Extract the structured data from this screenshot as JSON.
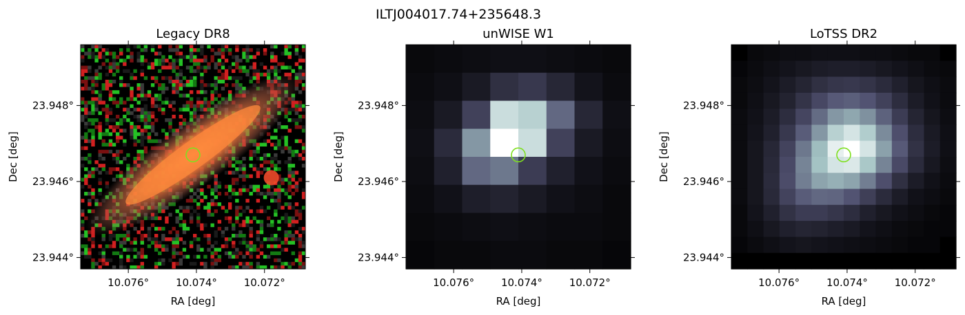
{
  "figure": {
    "title": "ILTJ004017.74+235648.3"
  },
  "chart_data": [
    {
      "type": "heatmap",
      "title": "Legacy DR8",
      "xlabel": "RA [deg]",
      "ylabel": "Dec [deg]",
      "x_ticks": [
        10.076,
        10.074,
        10.072
      ],
      "x_tick_labels": [
        "10.076°",
        "10.074°",
        "10.072°"
      ],
      "y_ticks": [
        23.948,
        23.946,
        23.944
      ],
      "y_tick_labels": [
        "23.948°",
        "23.946°",
        "23.944°"
      ],
      "xlim": [
        10.0774,
        10.0708
      ],
      "ylim": [
        23.9437,
        23.9496
      ],
      "x_inverted": true,
      "marker": {
        "shape": "circle",
        "ra": 10.0741,
        "dec": 23.9467,
        "color": "#7fe01f"
      },
      "image": "optical RGB color composite: elongated orange edge-on galaxy along diagonal, small red source lower-right, noisy red/green background"
    },
    {
      "type": "heatmap",
      "title": "unWISE W1",
      "xlabel": "RA [deg]",
      "ylabel": "Dec [deg]",
      "x_ticks": [
        10.076,
        10.074,
        10.072
      ],
      "x_tick_labels": [
        "10.076°",
        "10.074°",
        "10.072°"
      ],
      "y_ticks": [
        23.948,
        23.946,
        23.944
      ],
      "y_tick_labels": [
        "23.948°",
        "23.946°",
        "23.944°"
      ],
      "xlim": [
        10.0774,
        10.0708
      ],
      "ylim": [
        23.9437,
        23.9496
      ],
      "x_inverted": true,
      "marker": {
        "shape": "circle",
        "ra": 10.0741,
        "dec": 23.9467,
        "color": "#7fe01f"
      },
      "colormap": "bone",
      "grid_shape": [
        8,
        8
      ],
      "values": [
        [
          0.04,
          0.05,
          0.06,
          0.07,
          0.07,
          0.06,
          0.05,
          0.04
        ],
        [
          0.05,
          0.07,
          0.12,
          0.22,
          0.26,
          0.18,
          0.09,
          0.05
        ],
        [
          0.06,
          0.12,
          0.3,
          0.85,
          0.8,
          0.45,
          0.18,
          0.07
        ],
        [
          0.07,
          0.2,
          0.6,
          1.0,
          0.85,
          0.3,
          0.12,
          0.06
        ],
        [
          0.06,
          0.15,
          0.45,
          0.5,
          0.28,
          0.15,
          0.08,
          0.05
        ],
        [
          0.05,
          0.08,
          0.14,
          0.16,
          0.12,
          0.08,
          0.06,
          0.04
        ],
        [
          0.04,
          0.05,
          0.06,
          0.07,
          0.06,
          0.05,
          0.05,
          0.04
        ],
        [
          0.03,
          0.04,
          0.04,
          0.05,
          0.05,
          0.04,
          0.04,
          0.03
        ]
      ]
    },
    {
      "type": "heatmap",
      "title": "LoTSS DR2",
      "xlabel": "RA [deg]",
      "ylabel": "Dec [deg]",
      "x_ticks": [
        10.076,
        10.074,
        10.072
      ],
      "x_tick_labels": [
        "10.076°",
        "10.074°",
        "10.072°"
      ],
      "y_ticks": [
        23.948,
        23.946,
        23.944
      ],
      "y_tick_labels": [
        "23.948°",
        "23.946°",
        "23.944°"
      ],
      "xlim": [
        10.0774,
        10.0708
      ],
      "ylim": [
        23.9437,
        23.9496
      ],
      "x_inverted": true,
      "marker": {
        "shape": "circle",
        "ra": 10.0741,
        "dec": 23.9467,
        "color": "#7fe01f"
      },
      "colormap": "bone",
      "grid_shape": [
        14,
        14
      ],
      "values": [
        [
          0.0,
          0.04,
          0.05,
          0.06,
          0.06,
          0.07,
          0.07,
          0.07,
          0.06,
          0.06,
          0.05,
          0.04,
          0.04,
          0.0
        ],
        [
          0.03,
          0.05,
          0.07,
          0.09,
          0.11,
          0.13,
          0.14,
          0.14,
          0.13,
          0.11,
          0.09,
          0.07,
          0.05,
          0.04
        ],
        [
          0.04,
          0.06,
          0.09,
          0.13,
          0.17,
          0.22,
          0.25,
          0.26,
          0.24,
          0.2,
          0.15,
          0.1,
          0.07,
          0.05
        ],
        [
          0.04,
          0.07,
          0.11,
          0.16,
          0.24,
          0.33,
          0.4,
          0.42,
          0.38,
          0.3,
          0.21,
          0.13,
          0.08,
          0.05
        ],
        [
          0.05,
          0.08,
          0.13,
          0.21,
          0.32,
          0.46,
          0.6,
          0.65,
          0.58,
          0.43,
          0.28,
          0.17,
          0.1,
          0.06
        ],
        [
          0.05,
          0.09,
          0.15,
          0.26,
          0.41,
          0.6,
          0.8,
          0.88,
          0.78,
          0.56,
          0.36,
          0.21,
          0.12,
          0.07
        ],
        [
          0.05,
          0.1,
          0.18,
          0.31,
          0.5,
          0.72,
          0.93,
          1.0,
          0.88,
          0.63,
          0.4,
          0.23,
          0.13,
          0.07
        ],
        [
          0.05,
          0.1,
          0.19,
          0.34,
          0.54,
          0.74,
          0.88,
          0.9,
          0.76,
          0.54,
          0.34,
          0.2,
          0.11,
          0.06
        ],
        [
          0.05,
          0.1,
          0.2,
          0.35,
          0.52,
          0.64,
          0.68,
          0.64,
          0.52,
          0.36,
          0.22,
          0.13,
          0.08,
          0.05
        ],
        [
          0.05,
          0.1,
          0.19,
          0.31,
          0.41,
          0.45,
          0.44,
          0.38,
          0.29,
          0.2,
          0.13,
          0.08,
          0.06,
          0.04
        ],
        [
          0.04,
          0.09,
          0.15,
          0.23,
          0.28,
          0.28,
          0.25,
          0.21,
          0.15,
          0.11,
          0.08,
          0.06,
          0.04,
          0.03
        ],
        [
          0.04,
          0.07,
          0.11,
          0.15,
          0.17,
          0.16,
          0.14,
          0.12,
          0.09,
          0.07,
          0.05,
          0.04,
          0.03,
          0.03
        ],
        [
          0.03,
          0.05,
          0.07,
          0.09,
          0.1,
          0.09,
          0.08,
          0.07,
          0.06,
          0.05,
          0.04,
          0.03,
          0.03,
          0.0
        ],
        [
          0.0,
          0.0,
          0.0,
          0.0,
          0.0,
          0.0,
          0.0,
          0.0,
          0.0,
          0.0,
          0.0,
          0.0,
          0.0,
          0.0
        ]
      ]
    }
  ]
}
